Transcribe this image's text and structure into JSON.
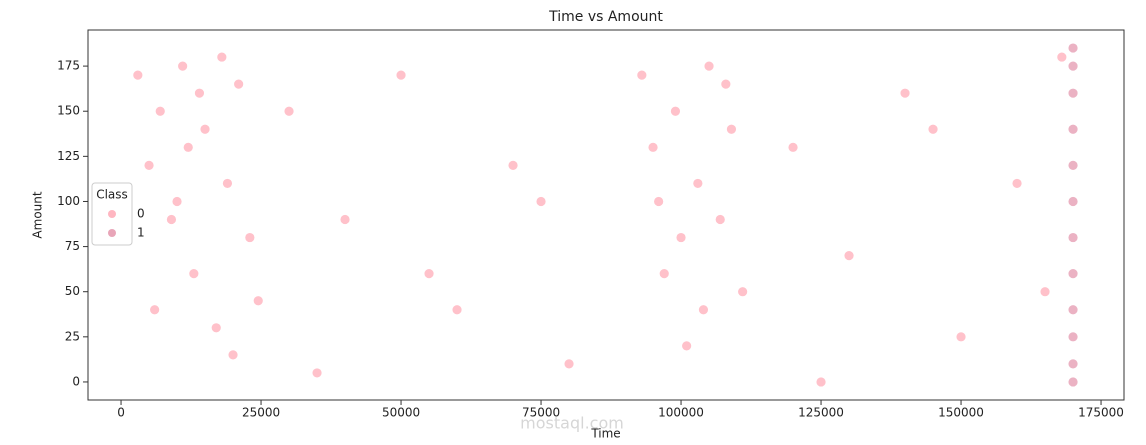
{
  "chart_data": {
    "type": "scatter",
    "title": "Time vs Amount",
    "x_label": "Time",
    "y_label": "Amount",
    "watermark": "mostaql.com",
    "xlim": [
      -5900,
      179100
    ],
    "ylim": [
      -10,
      195
    ],
    "xticks": [
      0,
      25000,
      50000,
      75000,
      100000,
      125000,
      150000,
      175000
    ],
    "yticks": [
      0,
      25,
      50,
      75,
      100,
      125,
      150,
      175
    ],
    "legend_title": "Class",
    "legend": "left",
    "series": [
      {
        "name": "0",
        "color": "#ffb6c1",
        "x": [
          3000,
          5000,
          7000,
          9000,
          11000,
          13000,
          15000,
          17000,
          19000,
          21000,
          23000,
          24500,
          6000,
          12000,
          18000,
          20000,
          10000,
          14000,
          93000,
          95000,
          97000,
          99000,
          101000,
          103000,
          105000,
          107000,
          109000,
          111000,
          100000,
          104000,
          96000,
          108000,
          30000,
          40000,
          50000,
          60000,
          70000,
          80000,
          120000,
          130000,
          140000,
          150000,
          160000,
          168000,
          35000,
          55000,
          75000,
          125000,
          145000,
          165000
        ],
        "y": [
          170,
          120,
          150,
          90,
          175,
          60,
          140,
          30,
          110,
          165,
          80,
          45,
          40,
          130,
          180,
          15,
          100,
          160,
          170,
          130,
          60,
          150,
          20,
          110,
          175,
          90,
          140,
          50,
          80,
          40,
          100,
          165,
          150,
          90,
          170,
          40,
          120,
          10,
          130,
          70,
          160,
          25,
          110,
          180,
          5,
          60,
          100,
          0,
          140,
          50
        ]
      },
      {
        "name": "1",
        "color": "#e8a5b8",
        "x": [
          170000,
          170000,
          170000,
          170000,
          170000,
          170000,
          170000,
          170000,
          170000,
          170000,
          170000,
          170000
        ],
        "y": [
          0,
          10,
          25,
          40,
          60,
          80,
          100,
          120,
          140,
          160,
          175,
          185
        ]
      }
    ]
  }
}
